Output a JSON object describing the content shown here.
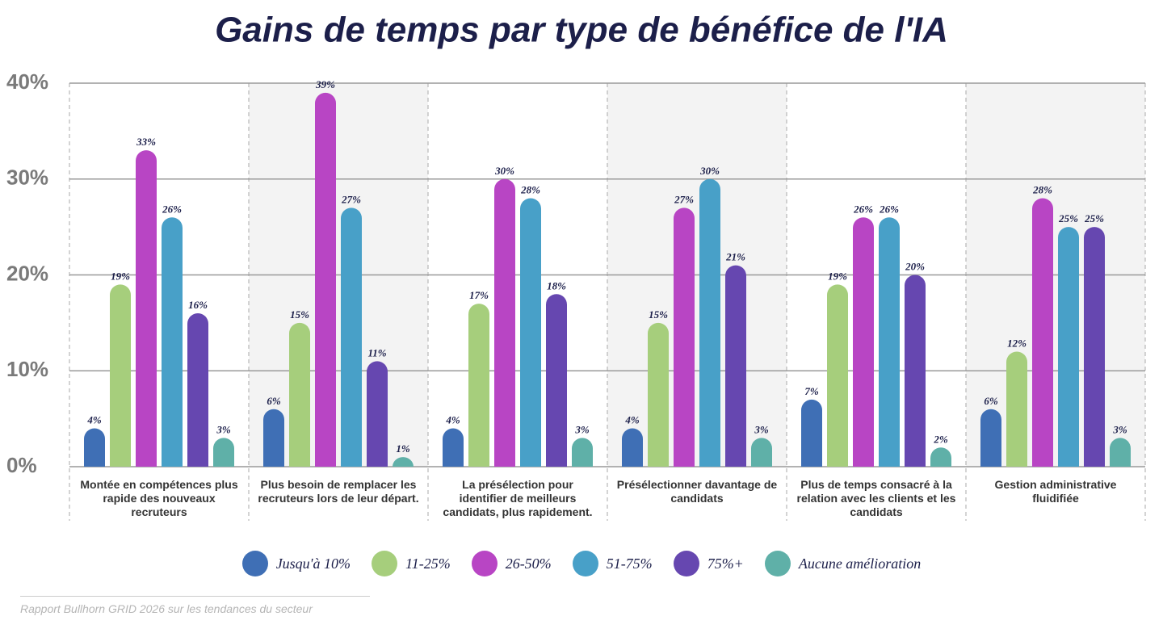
{
  "chart_data": {
    "type": "bar",
    "title": "Gains de temps par type de bénéfice de l'IA",
    "categories": [
      "Montée en compétences plus rapide des nouveaux recruteurs",
      "Plus besoin de remplacer les recruteurs lors de leur départ.",
      "La présélection pour identifier de meilleurs candidats, plus rapidement.",
      "Présélectionner davantage de candidats",
      "Plus de temps consacré à la relation avec les clients et les candidats",
      "Gestion administrative fluidifiée"
    ],
    "series": [
      {
        "name": "Jusqu'à 10%",
        "color": "#3f6fb5",
        "values": [
          4,
          6,
          4,
          4,
          7,
          6
        ],
        "value_labels": [
          "4%",
          "6%",
          "4%",
          "4%",
          "7%",
          "6%"
        ]
      },
      {
        "name": "11-25%",
        "color": "#a6ce7c",
        "values": [
          19,
          15,
          17,
          15,
          19,
          12
        ],
        "value_labels": [
          "19%",
          "15%",
          "17%",
          "15%",
          "19%",
          "12%"
        ]
      },
      {
        "name": "26-50%",
        "color": "#b845c4",
        "values": [
          33,
          39,
          30,
          27,
          26,
          28
        ],
        "value_labels": [
          "33%",
          "39%",
          "30%",
          "27%",
          "26%",
          "28%"
        ]
      },
      {
        "name": "51-75%",
        "color": "#48a0c8",
        "values": [
          26,
          27,
          28,
          30,
          26,
          25
        ],
        "value_labels": [
          "26%",
          "27%",
          "28%",
          "30%",
          "26%",
          "25%"
        ]
      },
      {
        "name": "75%+",
        "color": "#6647b0",
        "values": [
          16,
          11,
          18,
          21,
          20,
          25
        ],
        "value_labels": [
          "16%",
          "11%",
          "18%",
          "21%",
          "20%",
          "25%"
        ]
      },
      {
        "name": "Aucune amélioration",
        "color": "#5fb0a8",
        "values": [
          3,
          1,
          3,
          3,
          2,
          3
        ],
        "value_labels": [
          "3%",
          "1%",
          "3%",
          "3%",
          "2%",
          "3%"
        ]
      }
    ],
    "ylim": [
      0,
      40
    ],
    "yticks": [
      {
        "value": 0,
        "label": "0%"
      },
      {
        "value": 10,
        "label": "10%"
      },
      {
        "value": 20,
        "label": "20%"
      },
      {
        "value": 30,
        "label": "30%"
      },
      {
        "value": 40,
        "label": "40%"
      }
    ],
    "grid": true,
    "source": "Rapport Bullhorn GRID 2026 sur les tendances du secteur"
  }
}
